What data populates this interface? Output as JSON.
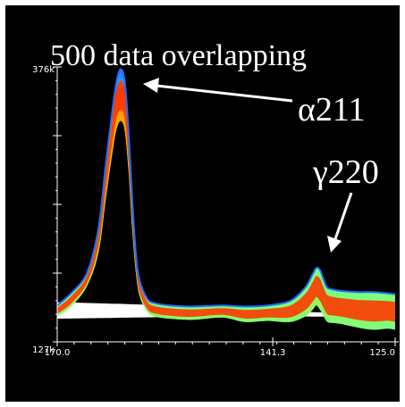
{
  "colors": {
    "background": "#000000",
    "frame": "#ffffff",
    "axis": "#ffffff",
    "text": "#ffffff",
    "band_gradient": [
      "#1f6bff",
      "#2a9cff",
      "#ff2a00",
      "#ff6a00",
      "#ffb000",
      "#e8e000",
      "#7cff7c"
    ],
    "baseline_band": "#ffffff"
  },
  "annotations": {
    "headline": "500 data overlapping",
    "peak1_label": "α211",
    "peak2_label": "γ220"
  },
  "chart_data": {
    "type": "line",
    "title": "",
    "xlabel": "",
    "ylabel": "",
    "x_reversed": true,
    "xlim": [
      170.0,
      125.0
    ],
    "ylim": [
      127000,
      376000
    ],
    "x_tick_labels": [
      "170.0",
      "141.3",
      "125.0"
    ],
    "x_tick_values": [
      170.0,
      141.3,
      125.0
    ],
    "y_tick_labels": [
      "376k",
      "127k"
    ],
    "y_tick_values": [
      376000,
      127000
    ],
    "series_count_shown": 500,
    "envelope": {
      "x": [
        170.0,
        168.0,
        166.0,
        164.5,
        163.5,
        162.5,
        162.0,
        161.5,
        161.0,
        160.5,
        160.0,
        159.5,
        159.0,
        158.0,
        157.0,
        155.0,
        152.0,
        148.0,
        145.0,
        142.0,
        139.0,
        137.0,
        136.0,
        135.5,
        135.0,
        134.5,
        134.0,
        133.0,
        132.0,
        130.0,
        128.0,
        126.0,
        125.0
      ],
      "upper": [
        160000,
        172000,
        190000,
        230000,
        290000,
        345000,
        366000,
        374000,
        362000,
        318000,
        255000,
        205000,
        182000,
        166000,
        162000,
        160000,
        159000,
        160000,
        159000,
        160000,
        164000,
        176000,
        188000,
        194000,
        192000,
        183000,
        176000,
        174000,
        173000,
        172000,
        172000,
        171000,
        170000
      ],
      "lower": [
        150000,
        160000,
        178000,
        208000,
        258000,
        305000,
        322000,
        327000,
        318000,
        282000,
        228000,
        188000,
        168000,
        154000,
        150000,
        148000,
        147000,
        149000,
        145000,
        146000,
        145000,
        150000,
        156000,
        160000,
        156000,
        150000,
        145000,
        144000,
        143000,
        140000,
        138000,
        139000,
        138000
      ]
    },
    "baseline_band": {
      "x": [
        170.0,
        160.0,
        150.0,
        140.0,
        132.0,
        125.0
      ],
      "upper": [
        163000,
        161000,
        159000,
        155000,
        153000,
        152000
      ],
      "lower": [
        148000,
        149000,
        150000,
        150000,
        150000,
        151000
      ]
    },
    "peaks": [
      {
        "label": "α211",
        "x": 161.5,
        "y": 374000
      },
      {
        "label": "γ220",
        "x": 135.5,
        "y": 194000
      }
    ]
  }
}
